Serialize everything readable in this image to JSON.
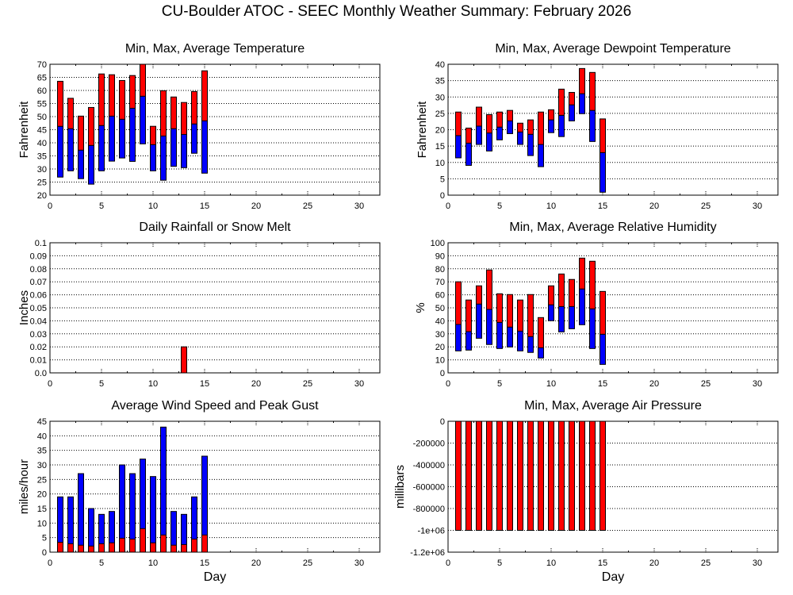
{
  "page_title": "CU-Boulder ATOC - SEEC Monthly Weather Summary: February 2026",
  "colors": {
    "red": "#ff0000",
    "blue": "#0000ff",
    "axis": "#000000"
  },
  "chart_data": [
    {
      "id": "temperature",
      "type": "bar",
      "subtype": "floating-stacked",
      "title": "Min, Max, Average Temperature",
      "xlabel": "",
      "ylabel": "Fahrenheit",
      "xlim": [
        0,
        32
      ],
      "ylim": [
        20,
        70
      ],
      "xticks": [
        0,
        5,
        10,
        15,
        20,
        25,
        30
      ],
      "yticks": [
        20,
        25,
        30,
        35,
        40,
        45,
        50,
        55,
        60,
        65,
        70
      ],
      "ytick_labels": [
        "20",
        "25",
        "30",
        "35",
        "40",
        "45",
        "50",
        "55",
        "60",
        "65",
        "70"
      ],
      "grid": true,
      "x": [
        1,
        2,
        3,
        4,
        5,
        6,
        7,
        8,
        9,
        10,
        11,
        12,
        13,
        14,
        15
      ],
      "series": [
        {
          "name": "Min",
          "values": [
            26.9,
            29.3,
            26.3,
            24.2,
            29.3,
            33.0,
            34.2,
            32.9,
            39.6,
            29.3,
            25.7,
            31.0,
            30.5,
            36.0,
            28.4
          ]
        },
        {
          "name": "Average",
          "values": [
            46.3,
            45.4,
            37.2,
            39.0,
            46.6,
            50.2,
            49.0,
            53.2,
            57.8,
            39.3,
            42.6,
            45.4,
            43.2,
            47.2,
            48.4
          ]
        },
        {
          "name": "Max",
          "values": [
            63.5,
            57.0,
            50.2,
            53.5,
            66.3,
            66.0,
            63.8,
            65.7,
            70.0,
            46.3,
            59.9,
            57.5,
            55.4,
            59.6,
            67.5
          ]
        }
      ]
    },
    {
      "id": "dewpoint",
      "type": "bar",
      "subtype": "floating-stacked",
      "title": "Min, Max, Average Dewpoint Temperature",
      "xlabel": "",
      "ylabel": "Fahrenheit",
      "xlim": [
        0,
        32
      ],
      "ylim": [
        0,
        40
      ],
      "xticks": [
        0,
        5,
        10,
        15,
        20,
        25,
        30
      ],
      "yticks": [
        0,
        5,
        10,
        15,
        20,
        25,
        30,
        35,
        40
      ],
      "ytick_labels": [
        "0",
        "5",
        "10",
        "15",
        "20",
        "25",
        "30",
        "35",
        "40"
      ],
      "grid": true,
      "x": [
        1,
        2,
        3,
        4,
        5,
        6,
        7,
        8,
        9,
        10,
        11,
        12,
        13,
        14,
        15
      ],
      "series": [
        {
          "name": "Min",
          "values": [
            11.4,
            9.1,
            15.5,
            13.5,
            16.9,
            18.8,
            15.5,
            12.1,
            8.7,
            19.1,
            17.9,
            22.7,
            24.9,
            16.4,
            0.9
          ]
        },
        {
          "name": "Average",
          "values": [
            18.2,
            15.9,
            21.1,
            19.0,
            20.8,
            22.7,
            19.3,
            18.6,
            15.5,
            23.0,
            24.4,
            27.6,
            31.0,
            25.9,
            13.0
          ]
        },
        {
          "name": "Max",
          "values": [
            25.4,
            20.5,
            26.9,
            24.6,
            25.4,
            25.9,
            22.0,
            23.0,
            25.4,
            26.1,
            32.4,
            31.4,
            38.7,
            37.5,
            23.3
          ]
        }
      ]
    },
    {
      "id": "rainfall",
      "type": "bar",
      "title": "Daily Rainfall or Snow Melt",
      "xlabel": "",
      "ylabel": "Inches",
      "xlim": [
        0,
        32
      ],
      "ylim": [
        0,
        0.1
      ],
      "xticks": [
        0,
        5,
        10,
        15,
        20,
        25,
        30
      ],
      "yticks": [
        0,
        0.01,
        0.02,
        0.03,
        0.04,
        0.05,
        0.06,
        0.07,
        0.08,
        0.09,
        0.1
      ],
      "ytick_labels": [
        "0.0",
        "0.01",
        "0.02",
        "0.03",
        "0.04",
        "0.05",
        "0.06",
        "0.07",
        "0.08",
        "0.09",
        "0.1"
      ],
      "grid": true,
      "x": [
        13
      ],
      "series": [
        {
          "name": "Rainfall",
          "values": [
            0.02
          ]
        }
      ]
    },
    {
      "id": "humidity",
      "type": "bar",
      "subtype": "floating-stacked",
      "title": "Min, Max, Average Relative Humidity",
      "xlabel": "",
      "ylabel": "%",
      "xlim": [
        0,
        32
      ],
      "ylim": [
        0,
        100
      ],
      "xticks": [
        0,
        5,
        10,
        15,
        20,
        25,
        30
      ],
      "yticks": [
        0,
        10,
        20,
        30,
        40,
        50,
        60,
        70,
        80,
        90,
        100
      ],
      "ytick_labels": [
        "0",
        "10",
        "20",
        "30",
        "40",
        "50",
        "60",
        "70",
        "80",
        "90",
        "100"
      ],
      "grid": true,
      "x": [
        1,
        2,
        3,
        4,
        5,
        6,
        7,
        8,
        9,
        10,
        11,
        12,
        13,
        14,
        15
      ],
      "series": [
        {
          "name": "Min",
          "values": [
            16.9,
            17.5,
            26.6,
            21.8,
            18.7,
            19.9,
            16.9,
            15.7,
            11.4,
            40.1,
            31.5,
            33.9,
            37.0,
            18.7,
            6.5
          ]
        },
        {
          "name": "Average",
          "values": [
            37.2,
            31.7,
            52.9,
            48.8,
            38.8,
            35.2,
            32.1,
            27.9,
            19.3,
            52.3,
            51.0,
            51.0,
            64.5,
            49.2,
            29.7
          ]
        },
        {
          "name": "Max",
          "values": [
            70.0,
            56.0,
            66.9,
            79.1,
            60.8,
            60.2,
            56.0,
            60.2,
            42.5,
            66.9,
            76.0,
            71.8,
            88.2,
            85.8,
            62.6
          ]
        }
      ]
    },
    {
      "id": "wind",
      "type": "bar",
      "subtype": "overlaid",
      "title": "Average Wind Speed and Peak Gust",
      "xlabel": "Day",
      "ylabel": "miles/hour",
      "xlim": [
        0,
        32
      ],
      "ylim": [
        0,
        45
      ],
      "xticks": [
        0,
        5,
        10,
        15,
        20,
        25,
        30
      ],
      "yticks": [
        0,
        5,
        10,
        15,
        20,
        25,
        30,
        35,
        40,
        45
      ],
      "ytick_labels": [
        "0",
        "5",
        "10",
        "15",
        "20",
        "25",
        "30",
        "35",
        "40",
        "45"
      ],
      "grid": true,
      "x": [
        1,
        2,
        3,
        4,
        5,
        6,
        7,
        8,
        9,
        10,
        11,
        12,
        13,
        14,
        15
      ],
      "series": [
        {
          "name": "Peak Gust",
          "values": [
            19,
            19,
            27,
            15,
            13,
            14,
            30,
            27,
            32,
            26,
            43,
            14,
            13,
            19,
            33
          ]
        },
        {
          "name": "Average Wind Speed",
          "values": [
            3.4,
            2.9,
            2.4,
            2.1,
            2.9,
            3.2,
            4.8,
            4.5,
            8.1,
            3.2,
            5.9,
            2.4,
            2.6,
            4.5,
            5.9
          ]
        }
      ]
    },
    {
      "id": "pressure",
      "type": "bar",
      "subtype": "floating-stacked",
      "title": "Min, Max, Average Air Pressure",
      "xlabel": "Day",
      "ylabel": "millibars",
      "xlim": [
        0,
        32
      ],
      "ylim": [
        -1200000,
        0
      ],
      "xticks": [
        0,
        5,
        10,
        15,
        20,
        25,
        30
      ],
      "yticks": [
        -1200000,
        -1000000,
        -800000,
        -600000,
        -400000,
        -200000,
        0
      ],
      "ytick_labels": [
        "-1.2e+06",
        "-1e+06",
        "-800000",
        "-600000",
        "-400000",
        "-200000",
        "0"
      ],
      "grid": true,
      "x": [
        1,
        2,
        3,
        4,
        5,
        6,
        7,
        8,
        9,
        10,
        11,
        12,
        13,
        14,
        15
      ],
      "series": [
        {
          "name": "Min",
          "values": [
            -1000000,
            -1000000,
            -1000000,
            -1000000,
            -1000000,
            -1000000,
            -1000000,
            -1000000,
            -1000000,
            -1000000,
            -1000000,
            -1000000,
            -1000000,
            -1000000,
            -1000000
          ]
        },
        {
          "name": "Average",
          "values": [
            0,
            0,
            0,
            0,
            0,
            0,
            0,
            0,
            0,
            0,
            0,
            0,
            0,
            0,
            0
          ]
        },
        {
          "name": "Max",
          "values": [
            0,
            0,
            0,
            0,
            0,
            0,
            0,
            0,
            0,
            0,
            0,
            0,
            0,
            0,
            0
          ]
        }
      ]
    }
  ]
}
